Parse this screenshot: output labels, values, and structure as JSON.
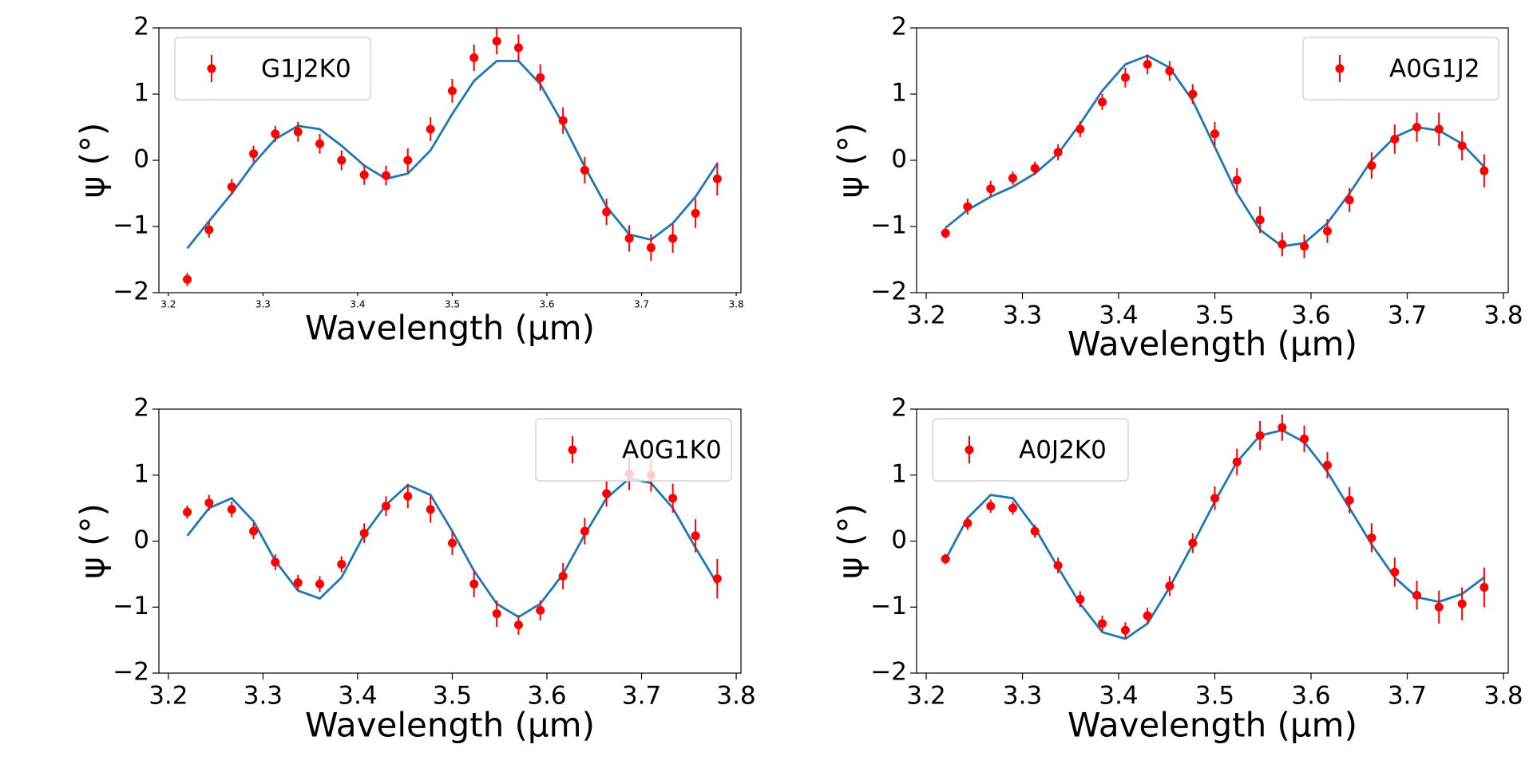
{
  "chart_data": [
    {
      "type": "scatter",
      "legend": "upper left",
      "xlabel": "Wavelength (μm)",
      "ylabel": "ψ (°)",
      "xlim": [
        3.19,
        3.805
      ],
      "xticks": [
        3.2,
        3.3,
        3.4,
        3.5,
        3.6,
        3.7,
        3.8
      ],
      "ylim": [
        -2,
        2
      ],
      "yticks": [
        {
          "value": -2,
          "label": "−2"
        },
        {
          "value": -1,
          "label": "−1"
        },
        0,
        1,
        2
      ],
      "x": [
        3.22,
        3.243,
        3.267,
        3.29,
        3.313,
        3.337,
        3.36,
        3.383,
        3.407,
        3.43,
        3.453,
        3.477,
        3.5,
        3.523,
        3.547,
        3.57,
        3.593,
        3.617,
        3.64,
        3.663,
        3.687,
        3.71,
        3.733,
        3.757,
        3.78
      ],
      "series": [
        {
          "name": "G1J2K0",
          "color": "#ff0000",
          "values": [
            -1.8,
            -1.05,
            -0.4,
            0.1,
            0.4,
            0.43,
            0.25,
            0,
            -0.22,
            -0.23,
            0,
            0.47,
            1.05,
            1.55,
            1.8,
            1.7,
            1.25,
            0.6,
            -0.15,
            -0.78,
            -1.18,
            -1.32,
            -1.18,
            -0.8,
            -0.28
          ],
          "errors": [
            0.1,
            0.12,
            0.12,
            0.12,
            0.12,
            0.15,
            0.15,
            0.15,
            0.15,
            0.15,
            0.18,
            0.18,
            0.18,
            0.2,
            0.2,
            0.2,
            0.2,
            0.2,
            0.2,
            0.2,
            0.2,
            0.2,
            0.22,
            0.22,
            0.25
          ]
        }
      ],
      "line": {
        "color": "#1f77b4",
        "values": [
          -1.33,
          -0.92,
          -0.5,
          -0.05,
          0.32,
          0.52,
          0.47,
          0.22,
          -0.08,
          -0.28,
          -0.2,
          0.15,
          0.7,
          1.2,
          1.5,
          1.5,
          1.15,
          0.55,
          -0.1,
          -0.7,
          -1.12,
          -1.2,
          -0.95,
          -0.55,
          -0.05
        ]
      }
    },
    {
      "type": "scatter",
      "legend": "upper right",
      "xlabel": "Wavelength (μm)",
      "ylabel": "ψ (°)",
      "xlim": [
        3.19,
        3.805
      ],
      "xticks": [
        3.2,
        3.3,
        3.4,
        3.5,
        3.6,
        3.7,
        3.8
      ],
      "ylim": [
        -2,
        2
      ],
      "yticks": [
        {
          "value": -2,
          "label": "−2"
        },
        {
          "value": -1,
          "label": "−1"
        },
        0,
        1,
        2
      ],
      "x": [
        3.22,
        3.243,
        3.267,
        3.29,
        3.313,
        3.337,
        3.36,
        3.383,
        3.407,
        3.43,
        3.453,
        3.477,
        3.5,
        3.523,
        3.547,
        3.57,
        3.593,
        3.617,
        3.64,
        3.663,
        3.687,
        3.71,
        3.733,
        3.757,
        3.78
      ],
      "series": [
        {
          "name": "A0G1J2",
          "color": "#ff0000",
          "values": [
            -1.1,
            -0.7,
            -0.43,
            -0.27,
            -0.12,
            0.12,
            0.47,
            0.88,
            1.25,
            1.45,
            1.35,
            1.0,
            0.4,
            -0.3,
            -0.9,
            -1.27,
            -1.3,
            -1.07,
            -0.6,
            -0.08,
            0.32,
            0.5,
            0.47,
            0.22,
            -0.16
          ],
          "errors": [
            0.08,
            0.12,
            0.12,
            0.1,
            0.1,
            0.12,
            0.12,
            0.12,
            0.15,
            0.15,
            0.15,
            0.15,
            0.18,
            0.18,
            0.2,
            0.18,
            0.18,
            0.18,
            0.18,
            0.2,
            0.22,
            0.22,
            0.25,
            0.22,
            0.25
          ]
        }
      ],
      "line": {
        "color": "#1f77b4",
        "values": [
          -1.02,
          -0.75,
          -0.55,
          -0.4,
          -0.2,
          0.1,
          0.55,
          1.05,
          1.45,
          1.58,
          1.4,
          0.9,
          0.2,
          -0.5,
          -1.05,
          -1.3,
          -1.25,
          -0.95,
          -0.5,
          0.0,
          0.35,
          0.5,
          0.45,
          0.25,
          -0.1
        ]
      }
    },
    {
      "type": "scatter",
      "legend": "upper right",
      "xlabel": "Wavelength (μm)",
      "ylabel": "ψ (°)",
      "xlim": [
        3.19,
        3.805
      ],
      "xticks": [
        3.2,
        3.3,
        3.4,
        3.5,
        3.6,
        3.7,
        3.8
      ],
      "ylim": [
        -2,
        2
      ],
      "yticks": [
        {
          "value": -2,
          "label": "−2"
        },
        {
          "value": -1,
          "label": "−1"
        },
        0,
        1,
        2
      ],
      "x": [
        3.22,
        3.243,
        3.267,
        3.29,
        3.313,
        3.337,
        3.36,
        3.383,
        3.407,
        3.43,
        3.453,
        3.477,
        3.5,
        3.523,
        3.547,
        3.57,
        3.593,
        3.617,
        3.64,
        3.663,
        3.687,
        3.71,
        3.733,
        3.757,
        3.78
      ],
      "series": [
        {
          "name": "A0G1K0",
          "color": "#ff0000",
          "values": [
            0.44,
            0.58,
            0.48,
            0.15,
            -0.32,
            -0.63,
            -0.65,
            -0.35,
            0.12,
            0.53,
            0.68,
            0.48,
            -0.03,
            -0.65,
            -1.1,
            -1.27,
            -1.05,
            -0.53,
            0.15,
            0.72,
            1.02,
            1.0,
            0.65,
            0.08,
            -0.57
          ],
          "errors": [
            0.1,
            0.12,
            0.12,
            0.12,
            0.12,
            0.12,
            0.12,
            0.12,
            0.15,
            0.15,
            0.18,
            0.2,
            0.18,
            0.2,
            0.2,
            0.15,
            0.15,
            0.2,
            0.2,
            0.2,
            0.25,
            0.25,
            0.22,
            0.25,
            0.3
          ]
        }
      ],
      "line": {
        "color": "#1f77b4",
        "values": [
          0.08,
          0.5,
          0.65,
          0.3,
          -0.3,
          -0.75,
          -0.87,
          -0.55,
          0.1,
          0.55,
          0.85,
          0.7,
          0.15,
          -0.45,
          -0.95,
          -1.15,
          -0.95,
          -0.5,
          0.1,
          0.65,
          0.95,
          0.88,
          0.5,
          -0.1,
          -0.65
        ]
      }
    },
    {
      "type": "scatter",
      "legend": "upper left",
      "xlabel": "Wavelength (μm)",
      "ylabel": "ψ (°)",
      "xlim": [
        3.19,
        3.805
      ],
      "xticks": [
        3.2,
        3.3,
        3.4,
        3.5,
        3.6,
        3.7,
        3.8
      ],
      "ylim": [
        -2,
        2
      ],
      "yticks": [
        {
          "value": -2,
          "label": "−2"
        },
        {
          "value": -1,
          "label": "−1"
        },
        0,
        1,
        2
      ],
      "x": [
        3.22,
        3.243,
        3.267,
        3.29,
        3.313,
        3.337,
        3.36,
        3.383,
        3.407,
        3.43,
        3.453,
        3.477,
        3.5,
        3.523,
        3.547,
        3.57,
        3.593,
        3.617,
        3.64,
        3.663,
        3.687,
        3.71,
        3.733,
        3.757,
        3.78
      ],
      "series": [
        {
          "name": "A0J2K0",
          "color": "#ff0000",
          "values": [
            -0.27,
            0.27,
            0.53,
            0.5,
            0.15,
            -0.37,
            -0.88,
            -1.25,
            -1.35,
            -1.13,
            -0.68,
            -0.03,
            0.65,
            1.2,
            1.6,
            1.72,
            1.55,
            1.15,
            0.62,
            0.05,
            -0.47,
            -0.82,
            -1.0,
            -0.95,
            -0.7
          ],
          "errors": [
            0.08,
            0.1,
            0.1,
            0.1,
            0.1,
            0.12,
            0.12,
            0.12,
            0.12,
            0.12,
            0.15,
            0.15,
            0.18,
            0.2,
            0.22,
            0.2,
            0.2,
            0.2,
            0.2,
            0.22,
            0.22,
            0.22,
            0.25,
            0.25,
            0.3
          ]
        }
      ],
      "line": {
        "color": "#1f77b4",
        "values": [
          -0.28,
          0.35,
          0.7,
          0.65,
          0.2,
          -0.4,
          -0.95,
          -1.38,
          -1.48,
          -1.25,
          -0.7,
          -0.05,
          0.6,
          1.2,
          1.6,
          1.68,
          1.5,
          1.05,
          0.5,
          -0.05,
          -0.55,
          -0.85,
          -0.92,
          -0.8,
          -0.55
        ]
      }
    }
  ]
}
